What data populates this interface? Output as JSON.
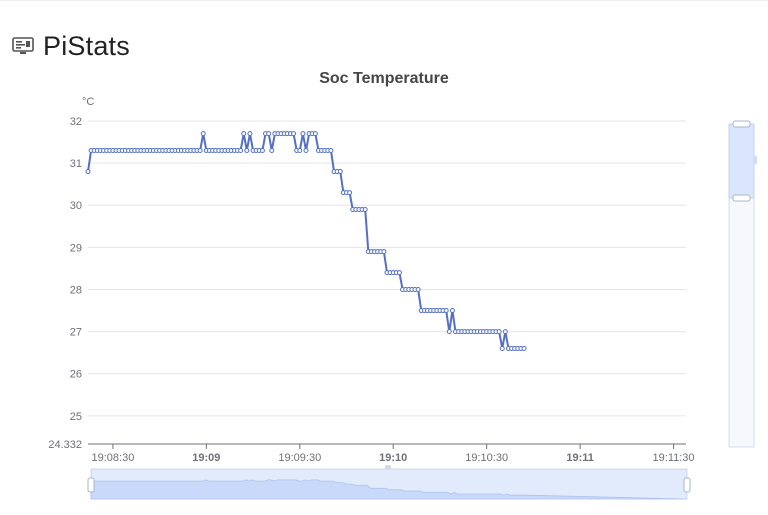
{
  "app": {
    "title": "PiStats",
    "icon": "monitor-icon"
  },
  "chart_data": {
    "type": "line",
    "title": "Soc Temperature",
    "xlabel": "",
    "ylabel": "",
    "y_unit_label": "°C",
    "ylim": [
      24.332,
      32
    ],
    "y_ticks": [
      "24.332",
      "25",
      "26",
      "27",
      "28",
      "29",
      "30",
      "31",
      "32"
    ],
    "x_start": "19:08:22",
    "x_end": "19:11:34",
    "x_ticks": [
      {
        "label": "19:08:30",
        "time": "19:08:30",
        "bold": false
      },
      {
        "label": "19:09",
        "time": "19:09:00",
        "bold": true
      },
      {
        "label": "19:09:30",
        "time": "19:09:30",
        "bold": false
      },
      {
        "label": "19:10",
        "time": "19:10:00",
        "bold": true
      },
      {
        "label": "19:10:30",
        "time": "19:10:30",
        "bold": false
      },
      {
        "label": "19:11",
        "time": "19:11:00",
        "bold": true
      },
      {
        "label": "19:11:30",
        "time": "19:11:30",
        "bold": false
      }
    ],
    "grid": true,
    "legend": "none",
    "datazoom": {
      "x_range": [
        0,
        100
      ],
      "y_range": [
        0,
        100
      ]
    },
    "colors": {
      "line": "#5470c6",
      "axis": "#6e7079",
      "grid": "#e0e6f1",
      "zoom_fill": "#d7e2f8",
      "zoom_border": "#d2dbee"
    },
    "series": [
      {
        "points": [
          [
            "19:08:22",
            30.8
          ],
          [
            "19:08:23",
            31.3
          ],
          [
            "19:08:24",
            31.3
          ],
          [
            "19:08:25",
            31.3
          ],
          [
            "19:08:26",
            31.3
          ],
          [
            "19:08:27",
            31.3
          ],
          [
            "19:08:28",
            31.3
          ],
          [
            "19:08:29",
            31.3
          ],
          [
            "19:08:30",
            31.3
          ],
          [
            "19:08:31",
            31.3
          ],
          [
            "19:08:32",
            31.3
          ],
          [
            "19:08:33",
            31.3
          ],
          [
            "19:08:34",
            31.3
          ],
          [
            "19:08:35",
            31.3
          ],
          [
            "19:08:36",
            31.3
          ],
          [
            "19:08:37",
            31.3
          ],
          [
            "19:08:38",
            31.3
          ],
          [
            "19:08:39",
            31.3
          ],
          [
            "19:08:40",
            31.3
          ],
          [
            "19:08:41",
            31.3
          ],
          [
            "19:08:42",
            31.3
          ],
          [
            "19:08:43",
            31.3
          ],
          [
            "19:08:44",
            31.3
          ],
          [
            "19:08:45",
            31.3
          ],
          [
            "19:08:46",
            31.3
          ],
          [
            "19:08:47",
            31.3
          ],
          [
            "19:08:48",
            31.3
          ],
          [
            "19:08:49",
            31.3
          ],
          [
            "19:08:50",
            31.3
          ],
          [
            "19:08:51",
            31.3
          ],
          [
            "19:08:52",
            31.3
          ],
          [
            "19:08:53",
            31.3
          ],
          [
            "19:08:54",
            31.3
          ],
          [
            "19:08:55",
            31.3
          ],
          [
            "19:08:56",
            31.3
          ],
          [
            "19:08:57",
            31.3
          ],
          [
            "19:08:58",
            31.3
          ],
          [
            "19:08:59",
            31.7
          ],
          [
            "19:09:00",
            31.3
          ],
          [
            "19:09:01",
            31.3
          ],
          [
            "19:09:02",
            31.3
          ],
          [
            "19:09:03",
            31.3
          ],
          [
            "19:09:04",
            31.3
          ],
          [
            "19:09:05",
            31.3
          ],
          [
            "19:09:06",
            31.3
          ],
          [
            "19:09:07",
            31.3
          ],
          [
            "19:09:08",
            31.3
          ],
          [
            "19:09:09",
            31.3
          ],
          [
            "19:09:10",
            31.3
          ],
          [
            "19:09:11",
            31.3
          ],
          [
            "19:09:12",
            31.7
          ],
          [
            "19:09:13",
            31.3
          ],
          [
            "19:09:14",
            31.7
          ],
          [
            "19:09:15",
            31.3
          ],
          [
            "19:09:16",
            31.3
          ],
          [
            "19:09:17",
            31.3
          ],
          [
            "19:09:18",
            31.3
          ],
          [
            "19:09:19",
            31.7
          ],
          [
            "19:09:20",
            31.7
          ],
          [
            "19:09:21",
            31.3
          ],
          [
            "19:09:22",
            31.7
          ],
          [
            "19:09:23",
            31.7
          ],
          [
            "19:09:24",
            31.7
          ],
          [
            "19:09:25",
            31.7
          ],
          [
            "19:09:26",
            31.7
          ],
          [
            "19:09:27",
            31.7
          ],
          [
            "19:09:28",
            31.7
          ],
          [
            "19:09:29",
            31.3
          ],
          [
            "19:09:30",
            31.3
          ],
          [
            "19:09:31",
            31.7
          ],
          [
            "19:09:32",
            31.3
          ],
          [
            "19:09:33",
            31.7
          ],
          [
            "19:09:34",
            31.7
          ],
          [
            "19:09:35",
            31.7
          ],
          [
            "19:09:36",
            31.3
          ],
          [
            "19:09:37",
            31.3
          ],
          [
            "19:09:38",
            31.3
          ],
          [
            "19:09:39",
            31.3
          ],
          [
            "19:09:40",
            31.3
          ],
          [
            "19:09:41",
            30.8
          ],
          [
            "19:09:42",
            30.8
          ],
          [
            "19:09:43",
            30.8
          ],
          [
            "19:09:44",
            30.3
          ],
          [
            "19:09:45",
            30.3
          ],
          [
            "19:09:46",
            30.3
          ],
          [
            "19:09:47",
            29.9
          ],
          [
            "19:09:48",
            29.9
          ],
          [
            "19:09:49",
            29.9
          ],
          [
            "19:09:50",
            29.9
          ],
          [
            "19:09:51",
            29.9
          ],
          [
            "19:09:52",
            28.9
          ],
          [
            "19:09:53",
            28.9
          ],
          [
            "19:09:54",
            28.9
          ],
          [
            "19:09:55",
            28.9
          ],
          [
            "19:09:56",
            28.9
          ],
          [
            "19:09:57",
            28.9
          ],
          [
            "19:09:58",
            28.4
          ],
          [
            "19:09:59",
            28.4
          ],
          [
            "19:10:00",
            28.4
          ],
          [
            "19:10:01",
            28.4
          ],
          [
            "19:10:02",
            28.4
          ],
          [
            "19:10:03",
            28.0
          ],
          [
            "19:10:04",
            28.0
          ],
          [
            "19:10:05",
            28.0
          ],
          [
            "19:10:06",
            28.0
          ],
          [
            "19:10:07",
            28.0
          ],
          [
            "19:10:08",
            28.0
          ],
          [
            "19:10:09",
            27.5
          ],
          [
            "19:10:10",
            27.5
          ],
          [
            "19:10:11",
            27.5
          ],
          [
            "19:10:12",
            27.5
          ],
          [
            "19:10:13",
            27.5
          ],
          [
            "19:10:14",
            27.5
          ],
          [
            "19:10:15",
            27.5
          ],
          [
            "19:10:16",
            27.5
          ],
          [
            "19:10:17",
            27.5
          ],
          [
            "19:10:18",
            27.0
          ],
          [
            "19:10:19",
            27.5
          ],
          [
            "19:10:20",
            27.0
          ],
          [
            "19:10:21",
            27.0
          ],
          [
            "19:10:22",
            27.0
          ],
          [
            "19:10:23",
            27.0
          ],
          [
            "19:10:24",
            27.0
          ],
          [
            "19:10:25",
            27.0
          ],
          [
            "19:10:26",
            27.0
          ],
          [
            "19:10:27",
            27.0
          ],
          [
            "19:10:28",
            27.0
          ],
          [
            "19:10:29",
            27.0
          ],
          [
            "19:10:30",
            27.0
          ],
          [
            "19:10:31",
            27.0
          ],
          [
            "19:10:32",
            27.0
          ],
          [
            "19:10:33",
            27.0
          ],
          [
            "19:10:34",
            27.0
          ],
          [
            "19:10:35",
            26.6
          ],
          [
            "19:10:36",
            27.0
          ],
          [
            "19:10:37",
            26.6
          ],
          [
            "19:10:38",
            26.6
          ],
          [
            "19:10:39",
            26.6
          ],
          [
            "19:10:40",
            26.6
          ],
          [
            "19:10:41",
            26.6
          ],
          [
            "19:10:42",
            26.6
          ]
        ]
      }
    ]
  }
}
